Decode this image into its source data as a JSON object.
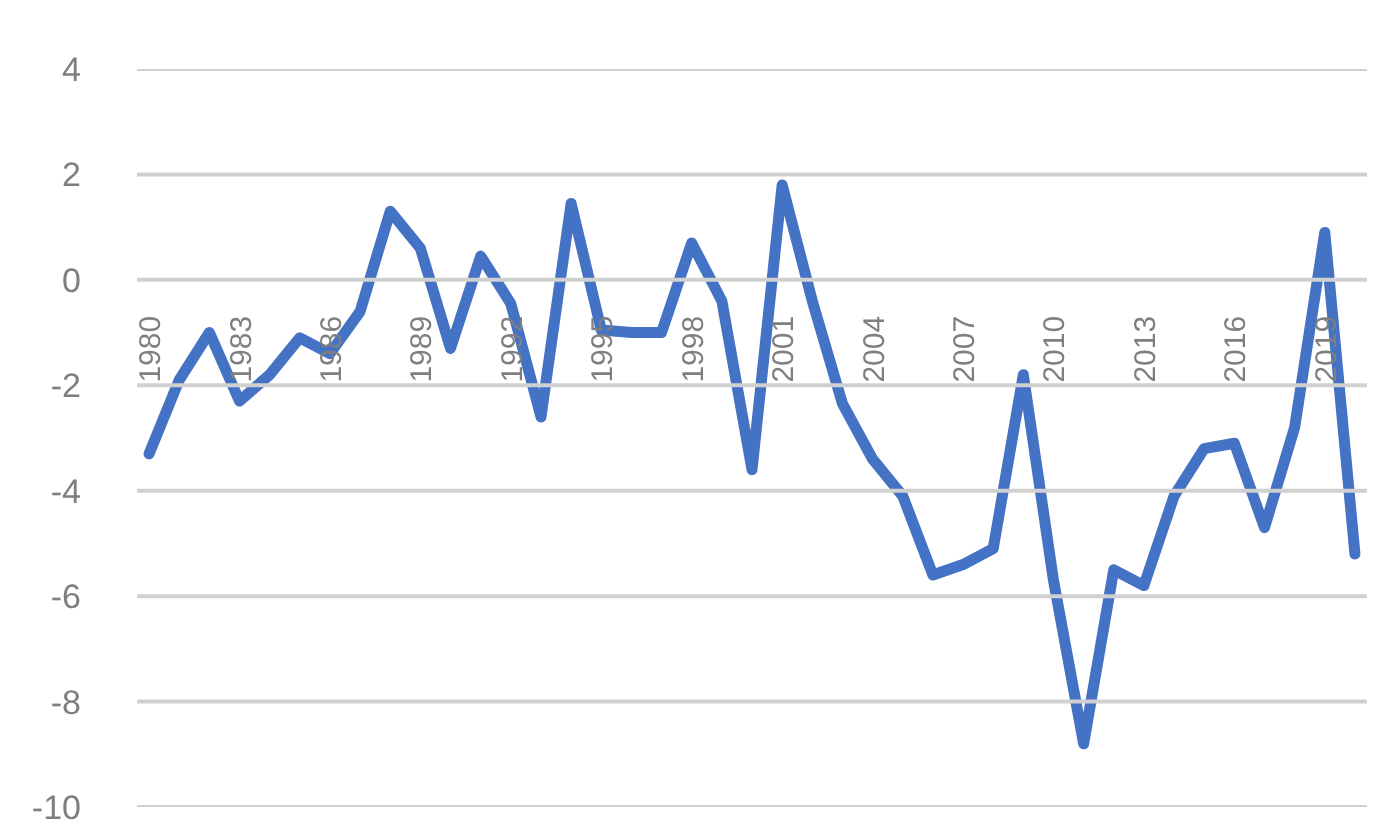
{
  "chart_data": {
    "type": "line",
    "categories": [
      "1980",
      null,
      null,
      "1983",
      null,
      null,
      "1986",
      null,
      null,
      "1989",
      null,
      null,
      "1992",
      null,
      null,
      "1995",
      null,
      null,
      "1998",
      null,
      null,
      "2001",
      null,
      null,
      "2004",
      null,
      null,
      "2007",
      null,
      null,
      "2010",
      null,
      null,
      "2013",
      null,
      null,
      "2016",
      null,
      null,
      "2019",
      null
    ],
    "series": [
      {
        "color": "#4472c4",
        "values": [
          -3.3,
          -1.9,
          -1.0,
          -2.3,
          -1.8,
          -1.1,
          -1.4,
          -0.6,
          1.3,
          0.6,
          -1.3,
          0.45,
          -0.45,
          -2.6,
          1.45,
          -0.95,
          -1.0,
          -1.0,
          0.7,
          -0.4,
          -3.6,
          1.8,
          -0.4,
          -2.35,
          -3.4,
          -4.1,
          -5.6,
          -5.4,
          -5.1,
          -1.8,
          -5.7,
          -8.8,
          -5.5,
          -5.8,
          -4.1,
          -3.2,
          -3.1,
          -4.7,
          -2.8,
          0.9,
          -5.2
        ]
      }
    ],
    "ylim": [
      -10,
      4
    ],
    "yticks": [
      -10,
      -8,
      -6,
      -4,
      -2,
      0,
      2,
      4
    ],
    "grid": "y",
    "marker": "none",
    "line_style": "solid"
  }
}
